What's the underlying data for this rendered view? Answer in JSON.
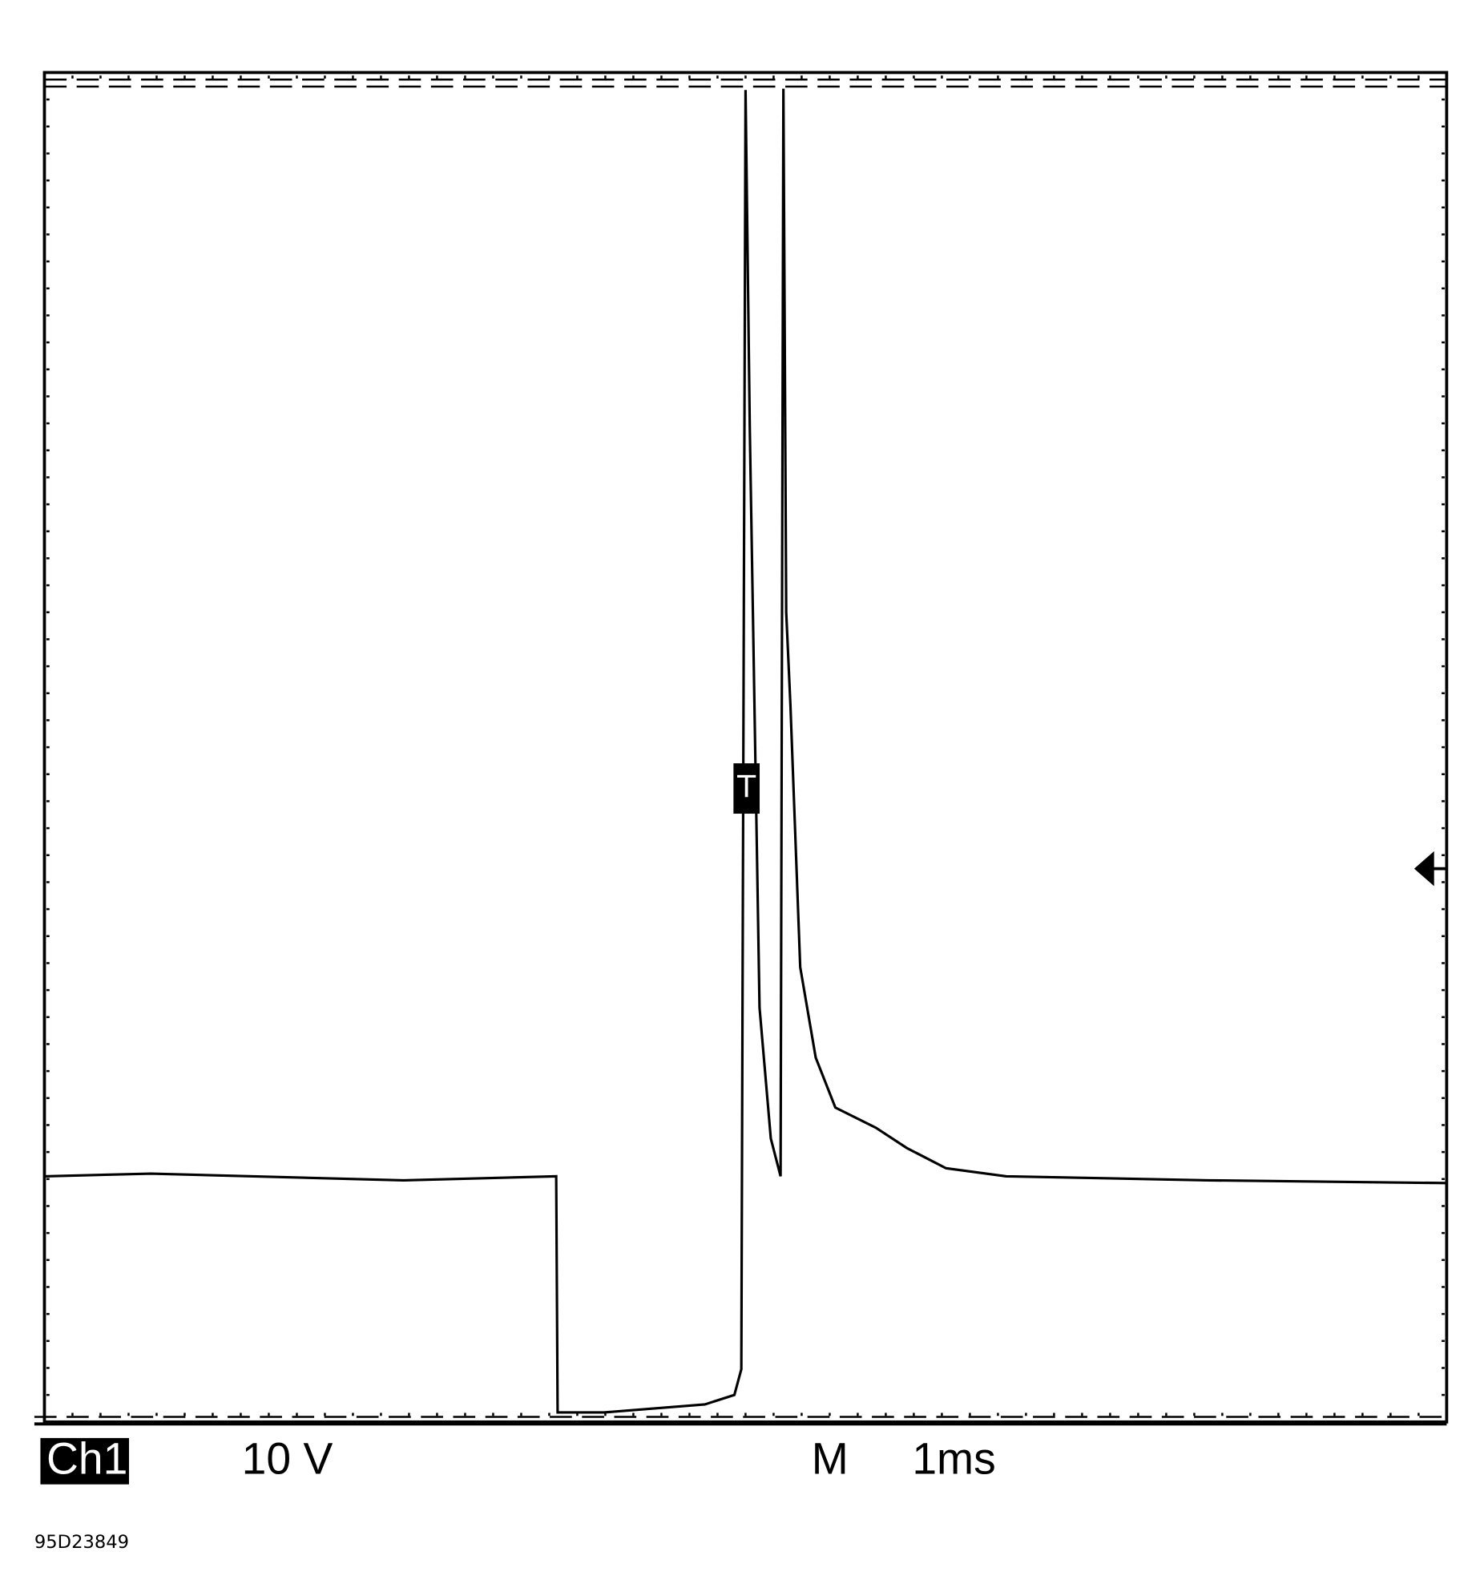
{
  "chart_data": {
    "type": "line",
    "channel": "Ch1",
    "volts_per_div": "10 V",
    "timebase_prefix": "M",
    "time_per_div": "1ms",
    "figure_id": "95D23849",
    "trigger_marker": "T",
    "trigger_time": 5,
    "trigger_level": 41,
    "xlim": [
      0,
      10
    ],
    "ylim": [
      0,
      100
    ],
    "color": "#000000",
    "x": [
      0,
      0.76,
      2.56,
      3.65,
      3.66,
      3.99,
      4.71,
      4.92,
      4.97,
      5.0,
      5.03,
      5.1,
      5.18,
      5.25,
      5.27,
      5.29,
      5.32,
      5.39,
      5.5,
      5.64,
      5.93,
      6.15,
      6.43,
      6.86,
      8.3,
      10
    ],
    "values": [
      18.2,
      18.4,
      17.9,
      18.2,
      0.7,
      0.7,
      1.3,
      2.0,
      3.9,
      98.7,
      73.7,
      30.7,
      21.0,
      18.2,
      98.8,
      60.0,
      53.1,
      33.7,
      27.0,
      23.3,
      21.8,
      20.3,
      18.8,
      18.2,
      17.9,
      17.7
    ]
  }
}
